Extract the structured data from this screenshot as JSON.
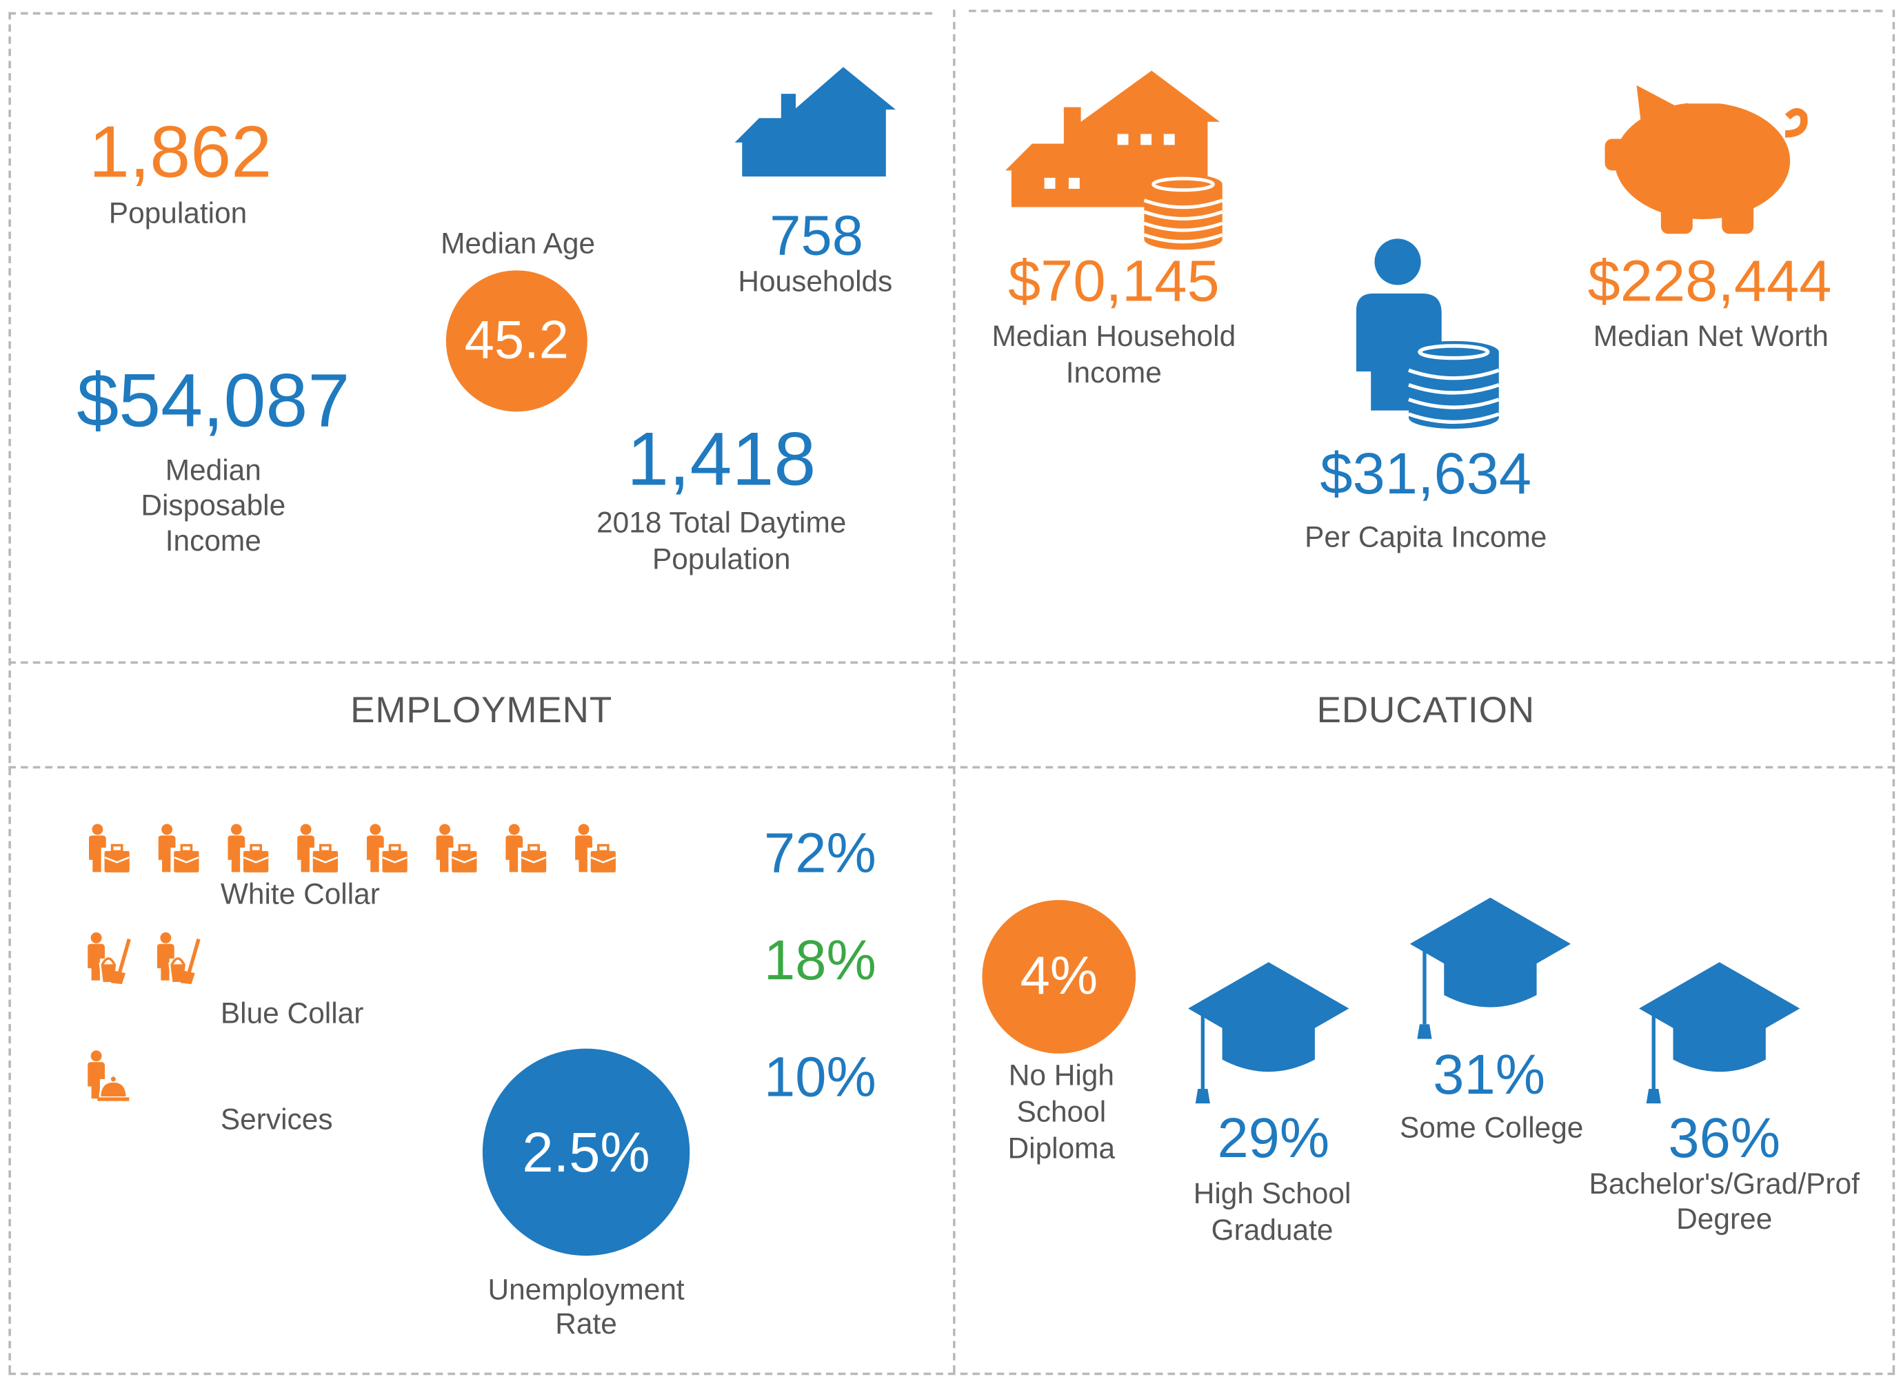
{
  "colors": {
    "orange": "#F5822A",
    "blue": "#1F7AC0",
    "green": "#3BA845",
    "text": "#555555"
  },
  "summary": {
    "population": {
      "value": "1,862",
      "label": "Population"
    },
    "median_age": {
      "label": "Median Age",
      "value": "45.2"
    },
    "households": {
      "value": "758",
      "label": "Households",
      "icon": "house-icon"
    },
    "median_disposable_income": {
      "value": "$54,087",
      "label_lines": [
        "Median",
        "Disposable",
        "Income"
      ]
    },
    "daytime_population": {
      "value": "1,418",
      "label_lines": [
        "2018 Total Daytime",
        "Population"
      ]
    }
  },
  "income": {
    "median_household_income": {
      "value": "$70,145",
      "label_lines": [
        "Median Household",
        "Income"
      ],
      "icon": "house-coins-icon"
    },
    "per_capita_income": {
      "value": "$31,634",
      "label": "Per Capita Income",
      "icon": "person-coins-icon"
    },
    "median_net_worth": {
      "value": "$228,444",
      "label": "Median Net Worth",
      "icon": "piggy-bank-icon"
    }
  },
  "employment": {
    "title": "EMPLOYMENT",
    "rows": [
      {
        "label": "White Collar",
        "percent": "72%",
        "icon_count": 8,
        "icon": "white-collar-worker-icon"
      },
      {
        "label": "Blue Collar",
        "percent": "18%",
        "icon_count": 2,
        "icon": "blue-collar-worker-icon"
      },
      {
        "label": "Services",
        "percent": "10%",
        "icon_count": 1,
        "icon": "services-worker-icon"
      }
    ],
    "unemployment": {
      "value": "2.5%",
      "label_lines": [
        "Unemployment",
        "Rate"
      ]
    }
  },
  "education": {
    "title": "EDUCATION",
    "no_high_school": {
      "value": "4%",
      "label_lines": [
        "No High",
        "School",
        "Diploma"
      ]
    },
    "high_school": {
      "value": "29%",
      "label_lines": [
        "High School",
        "Graduate"
      ]
    },
    "some_college": {
      "value": "31%",
      "label": "Some College"
    },
    "bachelors": {
      "value": "36%",
      "label_lines": [
        "Bachelor's/Grad/Prof",
        "Degree"
      ]
    }
  }
}
